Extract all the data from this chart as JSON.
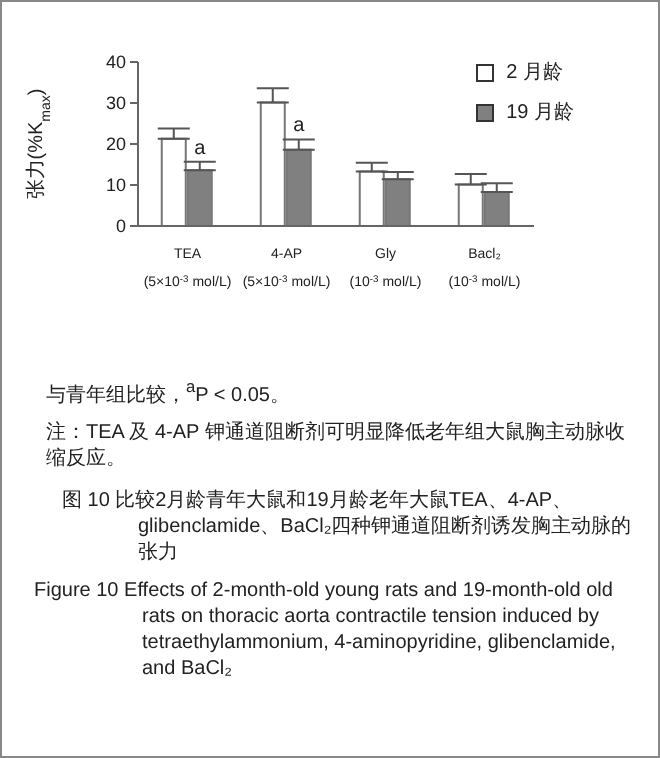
{
  "chart_data": {
    "type": "bar",
    "title": "图 10 比较2月龄青年大鼠和19月龄老年大鼠TEA、4-AP、glibenclamide、BaCl₂四种钾通道阻断剂诱发胸主动脉的张力",
    "subtitle": "Figure 10 Effects of 2-month-old young rats and 19-month-old old rats on thoracic aorta contractile tension induced by tetraethylammonium, 4-aminopyridine, glibenclamide, and BaCl₂",
    "ylabel": "张力(%K$_{max}$)",
    "categories": [
      "TEA\n(5×10$^{-3}$ mol/L)",
      "4-AP\n(5×10$^{-3}$ mol/L)",
      "Gly\n(10$^{-3}$ mol/L)",
      "Bacl₂\n(10$^{-3}$ mol/L)"
    ],
    "series": [
      {
        "name": "2 月龄",
        "color": "#ffffff",
        "values": [
          21.3,
          30.1,
          13.3,
          10.1
        ],
        "errors": [
          [
            21.3,
            23.8
          ],
          [
            30.1,
            33.6
          ],
          [
            13.3,
            15.4
          ],
          [
            10.1,
            12.7
          ]
        ]
      },
      {
        "name": "19 月龄",
        "color": "#808080",
        "values": [
          13.6,
          18.6,
          11.4,
          8.3
        ],
        "errors": [
          [
            13.6,
            15.7
          ],
          [
            18.6,
            21.1
          ],
          [
            11.4,
            13.2
          ],
          [
            8.3,
            10.4
          ]
        ]
      }
    ],
    "ylim": [
      0,
      40
    ],
    "yticks": [
      0,
      10,
      20,
      30,
      40
    ],
    "grid": false,
    "legend": "top right",
    "annotations": [
      {
        "text": "a",
        "x": "TEA\n(5×10$^{-3}$ mol/L)",
        "y": 15.7
      },
      {
        "text": "a",
        "x": "4-AP\n(5×10$^{-3}$ mol/L)",
        "y": 21.1
      },
      "与青年组比较，$^{a}$P < 0.05。",
      "注：TEA 及 4-AP 钾通道阻断剂可明显降低老年组大鼠胸主动脉收缩反应。"
    ]
  }
}
